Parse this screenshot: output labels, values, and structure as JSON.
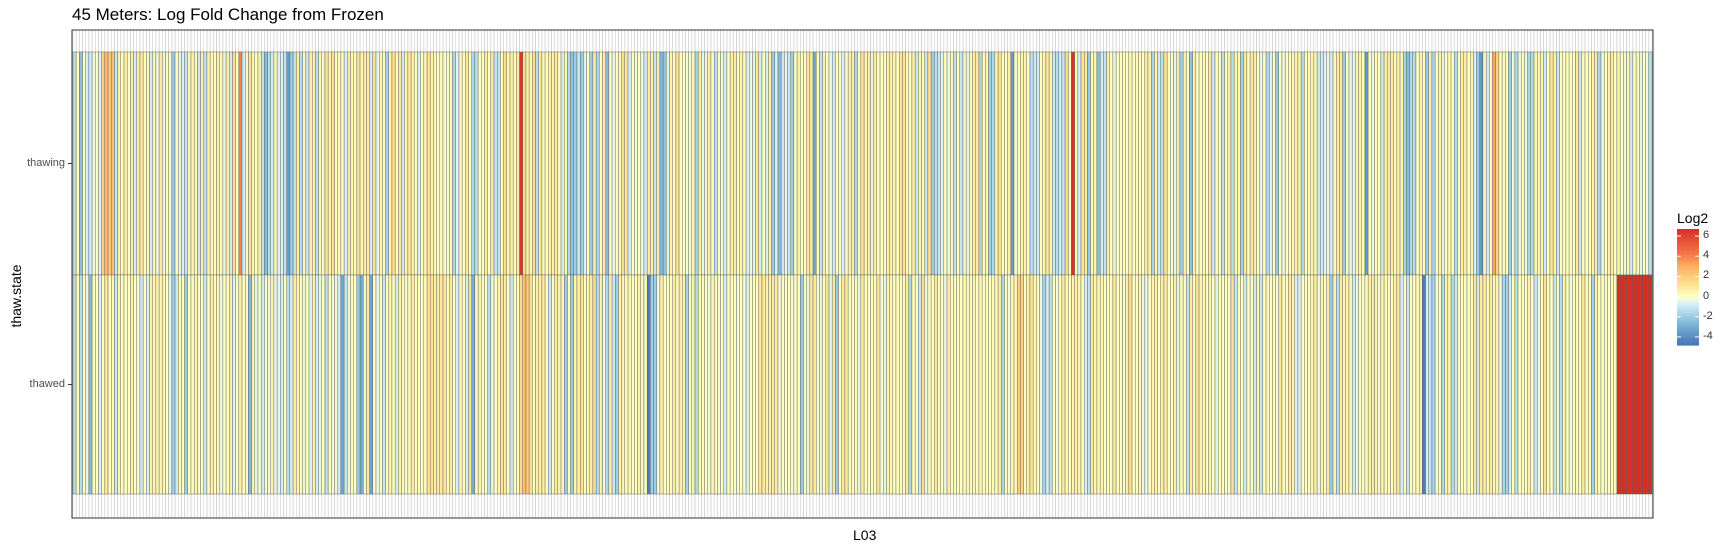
{
  "chart_data": {
    "type": "heatmap",
    "title": "45 Meters: Log Fold Change from Frozen",
    "xlabel": "L03",
    "ylabel": "thaw.state",
    "rows": [
      "thawing",
      "thawed"
    ],
    "legend": {
      "title": "Log2",
      "ticks": [
        6,
        4,
        2,
        0,
        -2,
        -4
      ],
      "range": [
        -4.8,
        6.7
      ],
      "placement": "right"
    },
    "values": {
      "thawing": [
        -1.46,
        0.0,
        -2.35,
        0.0,
        -0.81,
        -0.94,
        -0.34,
        0.0,
        -0.7,
        1.93,
        2.5,
        2.1,
        2.45,
        -1.02,
        0.43,
        0.0,
        0.72,
        0.0,
        0.68,
        -0.81,
        0.7,
        0.86,
        0.0,
        0.31,
        -0.92,
        0.3,
        -0.37,
        0.82,
        -0.42,
        0.21,
        -0.3,
        -2.07,
        0.1,
        -0.44,
        -0.7,
        -1.09,
        0.34,
        0.58,
        0.19,
        -0.99,
        0.75,
        -1.28,
        0.5,
        0.13,
        0.0,
        0.63,
        0.23,
        -0.46,
        0.75,
        -0.91,
        1.35,
        0.0,
        4.06,
        -0.86,
        0.11,
        0.99,
        0.29,
        0.0,
        0.64,
        -1.27,
        -2.5,
        -1.48,
        -0.94,
        0.28,
        -0.67,
        -0.69,
        -1.16,
        -3.34,
        -2.07,
        -1.27,
        0.68,
        -1.41,
        0.11,
        -1.06,
        0.69,
        0.58,
        -1.26,
        0.34,
        -0.23,
        1.16,
        0.4,
        1.22,
        0.18,
        0.27,
        0.0,
        -0.72,
        0.72,
        0.26,
        0.11,
        1.25,
        0.4,
        0.86,
        0.7,
        -0.85,
        1.08,
        -0.46,
        0.44,
        0.0,
        -1.77,
        0.53,
        1.32,
        0.16,
        0.88,
        -0.89,
        0.54,
        0.91,
        0.62,
        0.0,
        -0.67,
        0.0,
        0.33,
        1.3,
        0.43,
        0.21,
        0.0,
        0.23,
        -0.17,
        -0.17,
        0.24,
        -1.62,
        -0.62,
        0.42,
        0.0,
        0.86,
        0.0,
        -1.61,
        -1.26,
        0.0,
        0.0,
        0.76,
        0.0,
        0.91,
        -1.12,
        -1.14,
        0.0,
        1.41,
        0.19,
        0.85,
        0.0,
        0.77,
        6.4,
        1.24,
        0.66,
        0.24,
        1.36,
        -1.32,
        0.95,
        0.32,
        0.0,
        0.58,
        0.57,
        0.9,
        0.0,
        -0.8,
        0.28,
        -1.55,
        -2.26,
        -1.99,
        -1.03,
        -2.05,
        -0.64,
        0.0,
        -2.02,
        0.77,
        -1.74,
        0.0,
        0.79,
        -2.59,
        0.0,
        -0.36,
        0.0,
        0.11,
        1.34,
        0.92,
        -0.85,
        0.0,
        -0.31,
        0.0,
        -0.36,
        -0.91,
        0.93,
        0.58,
        -1.03,
        0.87,
        -2.6,
        -2.25,
        -0.44,
        0.43,
        0.0,
        1.25,
        0.0,
        0.0,
        -0.21,
        -0.11,
        0.11,
        -1.82,
        0.57,
        -0.42,
        -0.33,
        0.83,
        0.0,
        -1.34,
        0.0,
        -0.21,
        -0.79,
        0.0,
        0.77,
        0.79,
        0.0,
        0.56,
        0.16,
        -0.79,
        -0.37,
        -0.61,
        1.09,
        -0.84,
        0.0,
        -0.77,
        0.56,
        -2.08,
        -0.71,
        -2.56,
        -1.04,
        -0.45,
        -1.02,
        -2.02,
        0.0,
        0.59,
        0.0,
        0.0,
        1.01,
        0.9,
        -3.16,
        0.0,
        -1.18,
        0.48,
        0.0,
        -0.37,
        -0.9,
        0.0,
        0.0,
        -0.72,
        0.11,
        0.59,
        0.61,
        -1.55,
        0.0,
        1.04,
        0.46,
        0.73,
        -0.4,
        0.85,
        0.0,
        0.06,
        0.0,
        0.59,
        0.54,
        0.43,
        0.0,
        1.12,
        1.03,
        0.1,
        0.0,
        0.74,
        -1.09,
        0.38,
        0.24,
        -1.02,
        1.16,
        -1.99,
        -1.32,
        -0.99,
        -0.55,
        0.0,
        -0.36,
        0.23,
        -1.12,
        0.0,
        -1.11,
        0.48,
        -0.47,
        0.12,
        0.72,
        0.82,
        -1.55,
        0.27,
        0.44,
        -1.93,
        -1.56,
        0.33,
        1.33,
        0.0,
        0.0,
        0.55,
        -3.49,
        -0.13,
        0.0,
        0.4,
        0.49,
        0.0,
        -1.34,
        -0.97,
        -0.9,
        0.0,
        0.48,
        1.01,
        0.54,
        -0.98,
        -1.39,
        -0.84,
        -1.15,
        1.5,
        0.29,
        6.6,
        0.0,
        -0.8,
        1.19,
        0.85,
        -2.07,
        0.25,
        0.55,
        -2.4,
        -0.83,
        -1.16,
        0.7,
        0.0,
        -0.33,
        -0.08,
        0.0,
        0.0,
        0.0,
        0.3,
        0.0,
        0.2,
        0.2,
        0.0,
        0.76,
        0.5,
        -1.73,
        0.6,
        -0.92,
        -1.37,
        1.2,
        0.0,
        -0.15,
        -0.44,
        0.84,
        -1.85,
        0.7,
        0.0,
        -2.33,
        0.49,
        0.0,
        0.0,
        0.31,
        0.0,
        1.06,
        -1.06,
        0.16,
        0.0,
        -1.34,
        0.0,
        0.62,
        -1.42,
        0.5,
        0.3,
        -1.86,
        1.02,
        0.0,
        0.88,
        0.75,
        0.0,
        -0.44,
        0.0,
        -1.58,
        -0.73,
        0.0,
        -2.1,
        0.0,
        -0.43,
        0.0,
        0.0,
        0.35,
        0.51,
        0.47,
        -1.52,
        0.0,
        0.0,
        0.4,
        0.22,
        -1.03,
        -0.89,
        -0.61,
        -0.24,
        -0.86,
        0.27,
        0.9,
        0.81,
        -1.97,
        0.0,
        -0.55,
        -0.46,
        0.29,
        0.55,
        0.0,
        -3.61,
        0.0,
        -0.3,
        0.0,
        0.0,
        -1.02,
        0.73,
        0.84,
        0.66,
        0.0,
        0.62,
        0.43,
        -1.72,
        -2.44,
        -1.53,
        -1.53,
        0.0,
        0.53,
        0.0,
        -2.06,
        0.65,
        -1.68,
        0.0,
        0.48,
        -0.4,
        0.0,
        0.32,
        0.0,
        -1.43,
        0.0,
        0.63,
        0.63,
        0.0,
        0.47,
        -0.76,
        -2.05,
        -3.62,
        0.19,
        -0.82,
        0.0,
        3.19,
        1.78,
        0.0,
        0.31,
        0.0,
        -1.88,
        -0.29,
        -1.58,
        -0.32,
        0.0,
        -0.34,
        -1.63,
        -1.53,
        0.45,
        0.37,
        0.42,
        -0.92,
        0.0,
        1.13,
        0.52,
        -1.03,
        0.0,
        0.0,
        0.0,
        0.0,
        -0.08,
        0.94,
        -1.05,
        0.11,
        0.0,
        0.16,
        0.42,
        0.9,
        -1.62,
        -0.42,
        0.0,
        0.54,
        0.9,
        0.0,
        0.44,
        0.0,
        -0.33,
        0.3,
        -0.93,
        0.0,
        0.28,
        -0.52,
        0.0,
        -0.25,
        -1.34
      ],
      "thawed": [
        -1.53,
        0.0,
        -1.45,
        0.0,
        -0.39,
        -2.51,
        -0.08,
        0.0,
        -0.72,
        0.09,
        1.06,
        0.15,
        0.44,
        -1.07,
        0.5,
        0.0,
        0.0,
        0.0,
        0.46,
        -0.07,
        0.0,
        -0.93,
        0.0,
        -0.69,
        0.6,
        0.43,
        0.46,
        0.5,
        0.38,
        0.0,
        -0.55,
        -1.97,
        -0.97,
        0.14,
        0.0,
        -1.96,
        0.0,
        -0.06,
        0.55,
        0.0,
        -0.09,
        -0.98,
        0.0,
        0.77,
        0.0,
        0.25,
        -0.36,
        0.0,
        0.0,
        0.72,
        -0.65,
        0.0,
        0.54,
        0.0,
        0.11,
        -2.57,
        0.37,
        -0.52,
        -0.15,
        -0.96,
        -0.21,
        -0.25,
        0.54,
        -0.51,
        -0.51,
        -0.81,
        0.0,
        -1.34,
        -0.74,
        0.77,
        0.4,
        0.13,
        -0.3,
        0.0,
        -0.7,
        0.58,
        -0.81,
        -0.37,
        0.0,
        -1.39,
        0.0,
        -0.2,
        -0.29,
        -0.88,
        -3.09,
        -1.09,
        -0.3,
        0.0,
        0.0,
        -1.99,
        -3.07,
        0.21,
        0.75,
        -3.22,
        0.0,
        -0.41,
        0.0,
        -1.07,
        0.0,
        0.54,
        0.08,
        -0.81,
        0.53,
        0.09,
        -0.17,
        0.0,
        0.8,
        0.0,
        0.0,
        0.0,
        0.0,
        1.25,
        1.1,
        0.58,
        0.85,
        0.92,
        1.13,
        0.0,
        0.81,
        0.0,
        -0.75,
        0.42,
        0.0,
        -0.76,
        1.05,
        -2.98,
        0.0,
        0.52,
        -0.09,
        0.0,
        -1.36,
        -0.35,
        0.0,
        0.45,
        1.03,
        0.81,
        0.0,
        -1.05,
        0.0,
        0.0,
        1.46,
        2.39,
        2.12,
        1.29,
        0.0,
        0.64,
        0.61,
        0.89,
        0.0,
        -0.98,
        0.0,
        0.95,
        0.45,
        0.32,
        -1.99,
        0.0,
        -2.09,
        0.44,
        0.65,
        1.18,
        0.0,
        0.28,
        0.79,
        1.39,
        -1.51,
        0.73,
        -0.23,
        -1.6,
        0.55,
        -1.02,
        -1.85,
        0.51,
        0.45,
        -0.03,
        0.37,
        0.0,
        0.0,
        0.58,
        0.36,
        0.0,
        -4.47,
        -1.86,
        -1.92,
        -0.32,
        0.66,
        0.0,
        0.0,
        0.0,
        0.81,
        0.0,
        0.6,
        0.49,
        -1.74,
        -0.22,
        0.44,
        -1.55,
        0.0,
        0.14,
        0.0,
        -0.31,
        0.3,
        0.32,
        -0.22,
        0.0,
        -0.83,
        0.0,
        0.0,
        0.0,
        -0.17,
        0.0,
        -0.15,
        -0.72,
        0.0,
        0.0,
        0.0,
        1.08,
        0.9,
        0.57,
        0.57,
        0.84,
        0.67,
        -0.2,
        -0.1,
        0.0,
        0.0,
        -0.26,
        0.0,
        -0.06,
        -2.02,
        0.0,
        -0.39,
        1.06,
        0.93,
        -0.03,
        -0.45,
        0.0,
        1.01,
        -0.67,
        0.85,
        -2.0,
        0.0,
        1.03,
        0.9,
        0.0,
        0.0,
        0.2,
        -0.45,
        0.71,
        0.0,
        0.0,
        0.0,
        0.19,
        1.06,
        -0.11,
        -0.48,
        0.46,
        0.21,
        0.0,
        0.0,
        0.13,
        0.0,
        0.84,
        -1.68,
        0.0,
        0.0,
        -0.96,
        1.27,
        -0.34,
        0.0,
        0.0,
        0.81,
        0.0,
        0.0,
        -0.29,
        0.81,
        0.0,
        0.0,
        0.0,
        0.0,
        0.19,
        0.11,
        -0.07,
        0.28,
        0.0,
        0.29,
        0.0,
        0.0,
        0.0,
        0.09,
        0.0,
        0.75,
        -1.64,
        0.0,
        -0.27,
        0.29,
        0.3,
        1.89,
        1.58,
        0.0,
        0.77,
        1.11,
        0.25,
        0.0,
        -0.41,
        -1.8,
        -0.79,
        -1.36,
        0.0,
        -0.2,
        0.0,
        0.88,
        0.34,
        0.0,
        0.47,
        0.7,
        0.47,
        0.0,
        -0.72,
        -1.23,
        0.83,
        0.34,
        0.39,
        0.29,
        0.0,
        0.0,
        0.0,
        0.92,
        0.0,
        0.0,
        -0.23,
        0.81,
        1.26,
        0.0,
        0.0,
        0.47,
        -0.42,
        -0.46,
        0.0,
        0.5,
        0.55,
        0.0,
        0.67,
        0.8,
        0.0,
        0.0,
        0.66,
        -0.47,
        0.0,
        0.13,
        -1.16,
        0.74,
        0.0,
        1.13,
        0.48,
        0.29,
        0.16,
        0.43,
        0.0,
        -0.62,
        0.0,
        0.0,
        0.0,
        -0.15,
        1.26,
        -1.15,
        0.15,
        0.0,
        -0.95,
        0.0,
        0.23,
        -0.95,
        0.32,
        -1.19,
        0.0,
        0.38,
        0.0,
        0.0,
        -0.23,
        1.12,
        0.0,
        0.18,
        0.81,
        0.41,
        -0.69,
        -0.68,
        0.0,
        0.0,
        0.0,
        0.28,
        0.74,
        -0.51,
        0.42,
        0.0,
        0.77,
        -1.99,
        0.51,
        -1.38,
        0.67,
        0.36,
        0.55,
        0.2,
        -0.9,
        -0.35,
        0.0,
        -0.1,
        0.0,
        0.61,
        0.82,
        0.49,
        -0.29,
        0.47,
        0.19,
        0.0,
        0.0,
        0.61,
        1.09,
        -0.82,
        0.0,
        -1.06,
        0.0,
        0.0,
        0.0,
        0.59,
        -4.48,
        -0.82,
        -1.16,
        -1.8,
        0.0,
        0.0,
        -1.58,
        0.52,
        0.25,
        -1.52,
        -0.93,
        0.0,
        0.0,
        0.0,
        0.0,
        0.0,
        0.89,
        -0.89,
        0.79,
        0.74,
        0.18,
        0.74,
        0.25,
        0.38,
        -0.31,
        -1.71,
        -1.8,
        -0.81,
        0.0,
        -1.44,
        0.0,
        0.0,
        0.0,
        0.6,
        0.0,
        -1.11,
        -0.42,
        0.0,
        1.26,
        0.0,
        0.0,
        -1.12,
        -0.15,
        -1.47,
        0.55,
        0.0,
        -0.27,
        -0.05,
        0.13,
        0.0,
        0.91,
        0.0,
        0.23,
        -1.75,
        0.65,
        -0.04,
        0.0,
        -0.18,
        0.0,
        0.14,
        0.32
      ]
    }
  }
}
